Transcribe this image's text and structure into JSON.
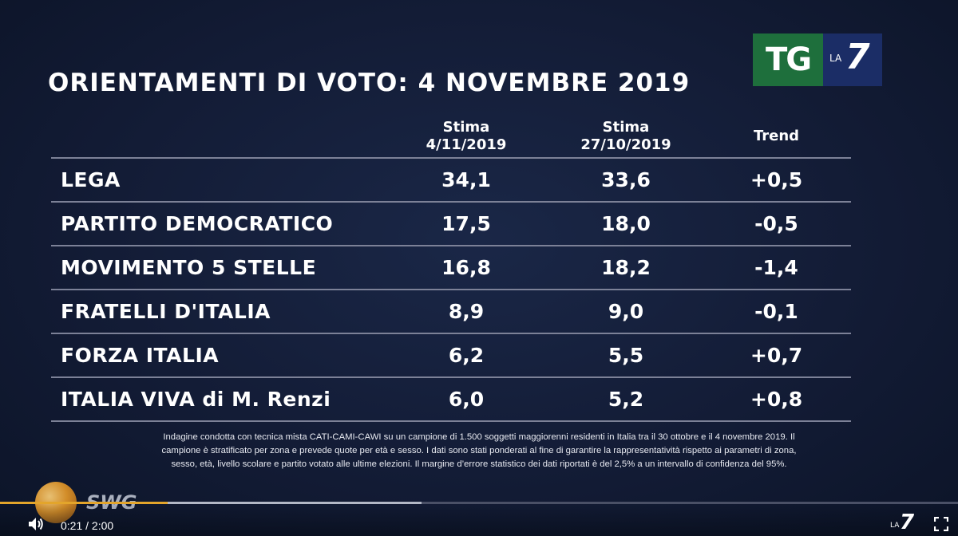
{
  "title": "ORIENTAMENTI DI VOTO: 4 NOVEMBRE 2019",
  "logo": {
    "tg": "TG",
    "la": "LA",
    "seven": "7"
  },
  "table": {
    "headers": {
      "col1_line1": "Stima",
      "col1_line2": "4/11/2019",
      "col2_line1": "Stima",
      "col2_line2": "27/10/2019",
      "col3": "Trend"
    },
    "rows": [
      {
        "party": "LEGA",
        "est_now": "34,1",
        "est_prev": "33,6",
        "trend": "+0,5"
      },
      {
        "party": "PARTITO DEMOCRATICO",
        "est_now": "17,5",
        "est_prev": "18,0",
        "trend": "-0,5"
      },
      {
        "party": "MOVIMENTO 5 STELLE",
        "est_now": "16,8",
        "est_prev": "18,2",
        "trend": "-1,4"
      },
      {
        "party": "FRATELLI D'ITALIA",
        "est_now": "8,9",
        "est_prev": "9,0",
        "trend": "-0,1"
      },
      {
        "party": "FORZA ITALIA",
        "est_now": "6,2",
        "est_prev": "5,5",
        "trend": "+0,7"
      },
      {
        "party": "ITALIA VIVA di M. Renzi",
        "est_now": "6,0",
        "est_prev": "5,2",
        "trend": "+0,8"
      }
    ]
  },
  "note": {
    "line1": "Indagine condotta con tecnica mista CATI-CAMI-CAWI su un campione di 1.500 soggetti maggiorenni residenti in Italia tra il 30 ottobre e il 4 novembre 2019. Il",
    "line2": "campione è stratificato per zona e prevede quote per età e sesso. I dati sono stati ponderati al fine di garantire la rappresentatività rispetto ai parametri di zona,",
    "line3": "sesso, età, livello scolare e partito votato alle ultime elezioni. Il margine d’errore statistico dei dati riportati è del 2,5% a un intervallo di confidenza del 95%."
  },
  "swg": {
    "label": "SWG"
  },
  "player": {
    "current_time": "0:21",
    "separator": " / ",
    "duration": "2:00",
    "played_fraction": 0.175,
    "buffered_fraction": 0.44,
    "brand_la": "LA",
    "brand_seven": "7",
    "accent_color": "#e3a52b"
  }
}
